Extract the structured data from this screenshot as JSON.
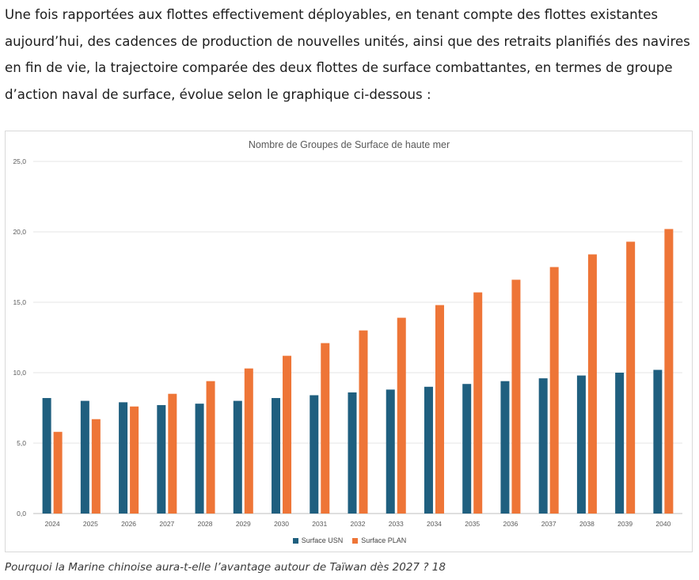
{
  "article": {
    "intro_text": "Une fois rapportées aux flottes effectivement déployables, en tenant compte des flottes existantes aujourd’hui, des cadences de production de nouvelles unités, ainsi que des retraits planifiés des navires en fin de vie, la trajectoire comparée des deux flottes de surface combattantes, en termes de groupe d’action naval de surface, évolue selon le graphique ci-dessous :",
    "caption": "Pourquoi la Marine chinoise aura-t-elle l’avantage autour de Taïwan dès 2027 ? 18"
  },
  "chart_data": {
    "type": "bar",
    "title": "Nombre de Groupes de Surface de haute mer",
    "xlabel": "",
    "ylabel": "",
    "ylim": [
      0,
      25
    ],
    "y_ticks": [
      "0,0",
      "5,0",
      "10,0",
      "15,0",
      "20,0",
      "25,0"
    ],
    "grid": true,
    "legend_position": "bottom",
    "categories": [
      "2024",
      "2025",
      "2026",
      "2027",
      "2028",
      "2029",
      "2030",
      "2031",
      "2032",
      "2033",
      "2034",
      "2035",
      "2036",
      "2037",
      "2038",
      "2039",
      "2040"
    ],
    "series": [
      {
        "name": "Surface USN",
        "color": "#1f5f7f",
        "values": [
          8.2,
          8.0,
          7.9,
          7.7,
          7.8,
          8.0,
          8.2,
          8.4,
          8.6,
          8.8,
          9.0,
          9.2,
          9.4,
          9.6,
          9.8,
          10.0,
          10.2
        ]
      },
      {
        "name": "Surface PLAN",
        "color": "#ee7537",
        "values": [
          5.8,
          6.7,
          7.6,
          8.5,
          9.4,
          10.3,
          11.2,
          12.1,
          13.0,
          13.9,
          14.8,
          15.7,
          16.6,
          17.5,
          18.4,
          19.3,
          20.2
        ]
      }
    ]
  }
}
